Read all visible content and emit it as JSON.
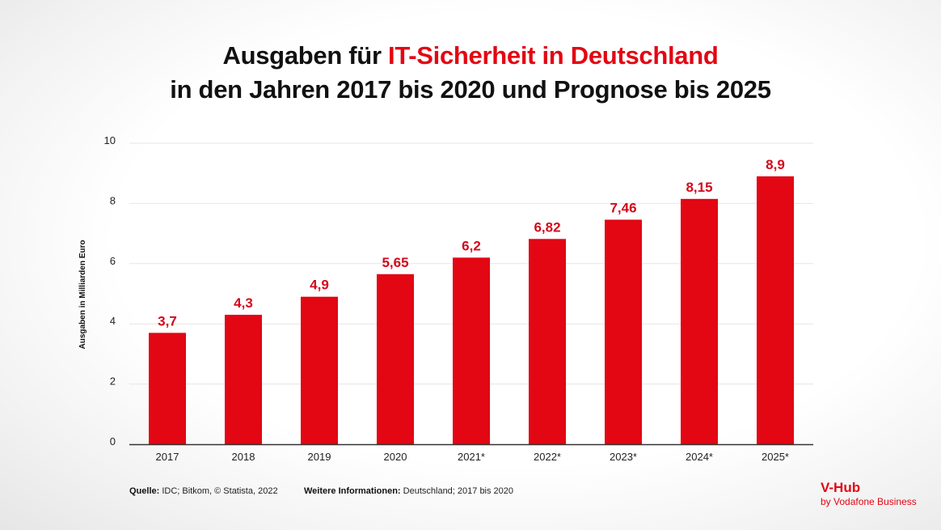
{
  "title": {
    "part1": "Ausgaben für ",
    "highlight": "IT-Sicherheit in Deutschland",
    "line2": "in den Jahren 2017 bis 2020 und Prognose bis 2025"
  },
  "colors": {
    "bar": "#e30613",
    "label": "#d3081a",
    "grid": "#e6e6e6",
    "axis": "#333333"
  },
  "chart_data": {
    "type": "bar",
    "title": "Ausgaben für IT-Sicherheit in Deutschland in den Jahren 2017 bis 2020 und Prognose bis 2025",
    "xlabel": "",
    "ylabel": "Ausgaben in Milliarden Euro",
    "categories": [
      "2017",
      "2018",
      "2019",
      "2020",
      "2021*",
      "2022*",
      "2023*",
      "2024*",
      "2025*"
    ],
    "values": [
      3.7,
      4.3,
      4.9,
      5.65,
      6.2,
      6.82,
      7.46,
      8.15,
      8.9
    ],
    "data_labels": [
      "3,7",
      "4,3",
      "4,9",
      "5,65",
      "6,2",
      "6,82",
      "7,46",
      "8,15",
      "8,9"
    ],
    "ylim": [
      0,
      10
    ],
    "yticks": [
      0,
      2,
      4,
      6,
      8,
      10
    ],
    "grid": true,
    "legend": "none"
  },
  "footer": {
    "source_label": "Quelle:",
    "source_text": " IDC; Bitkom, © Statista, 2022",
    "info_label": "Weitere Informationen:",
    "info_text": " Deutschland; 2017 bis 2020"
  },
  "brand": {
    "name": "V-Hub",
    "sub": "by Vodafone Business"
  }
}
